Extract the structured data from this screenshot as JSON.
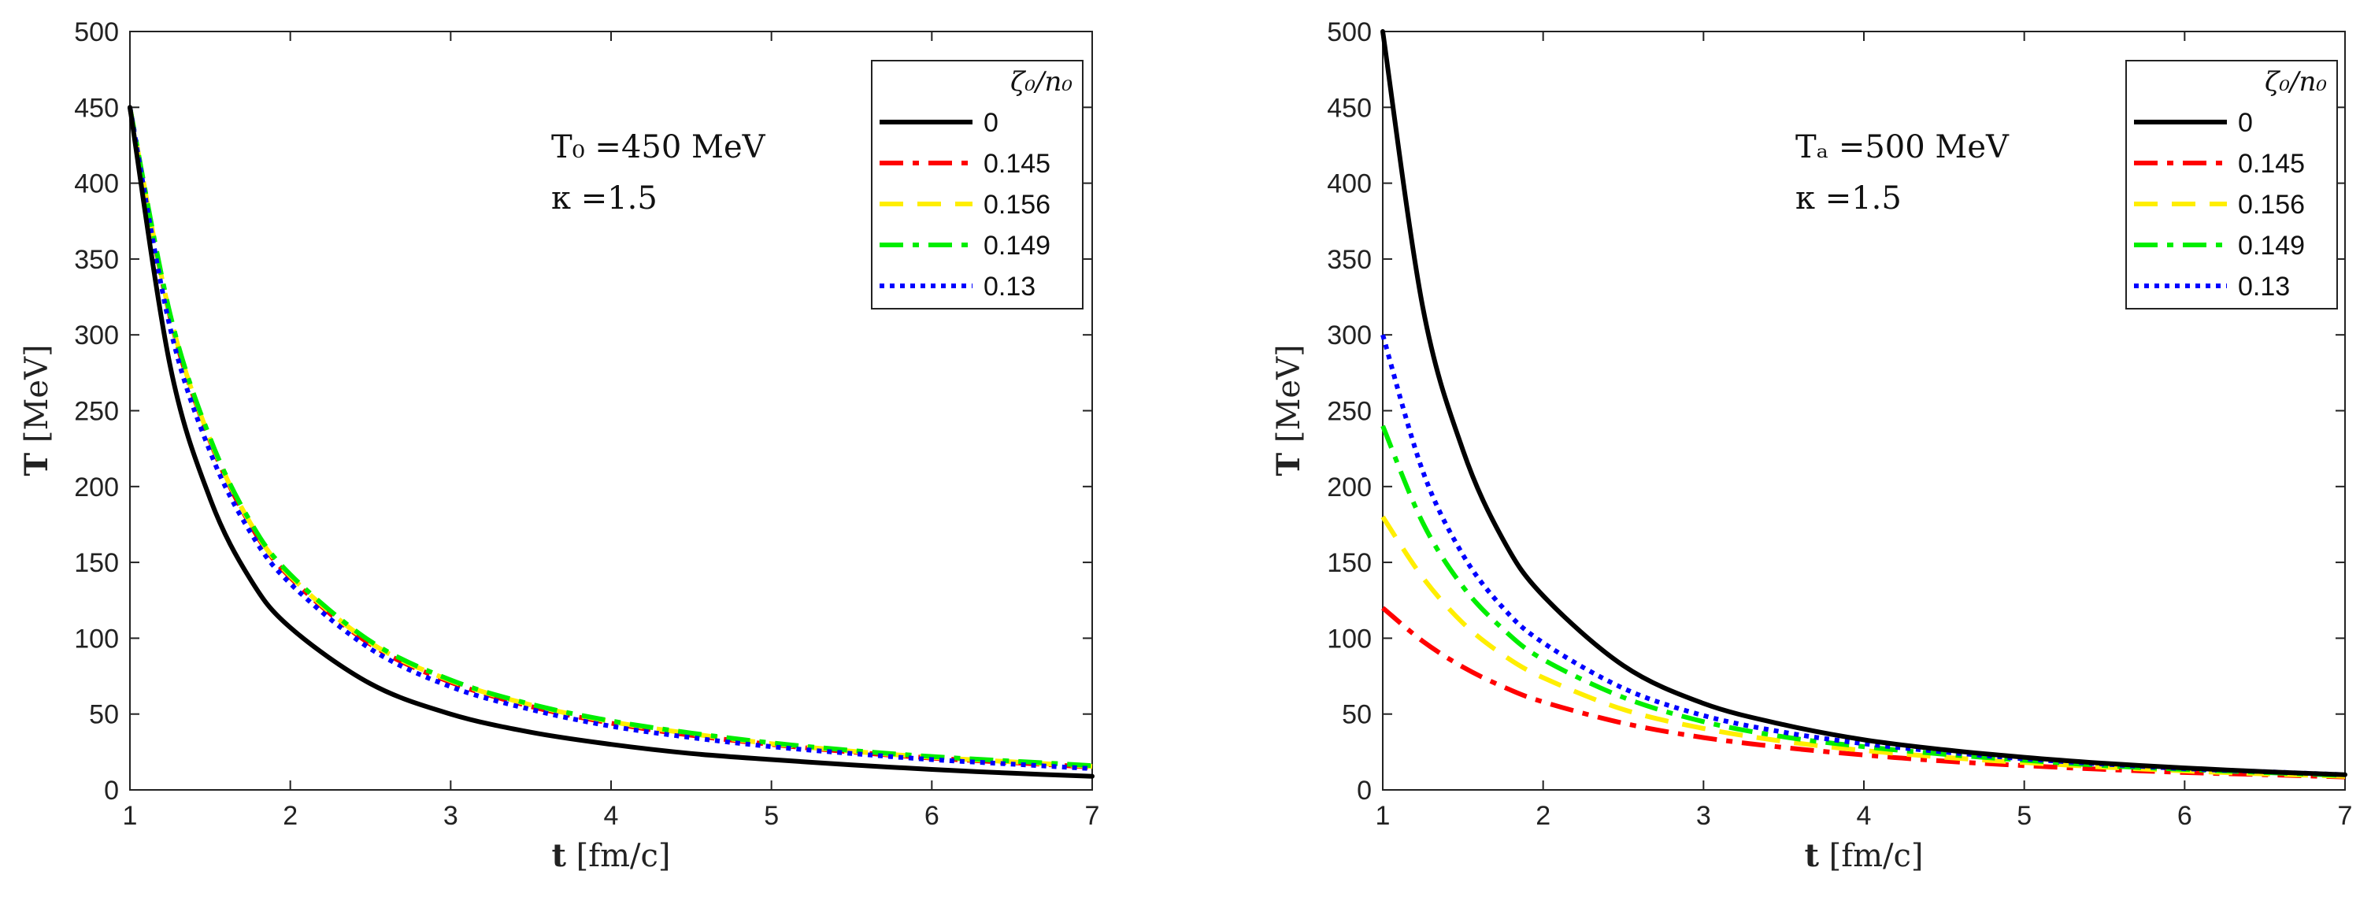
{
  "chart_data": [
    {
      "type": "line",
      "panel": "left",
      "xlabel_bold": "t",
      "xlabel_rest": " [fm/c]",
      "ylabel_bold": "T",
      "ylabel_rest": " [MeV]",
      "xlim": [
        1,
        7
      ],
      "ylim": [
        0,
        500
      ],
      "xticks": [
        1,
        2,
        3,
        4,
        5,
        6,
        7
      ],
      "yticks": [
        0,
        50,
        100,
        150,
        200,
        250,
        300,
        350,
        400,
        450,
        500
      ],
      "annotation_line1": "T₀ =450 MeV",
      "annotation_line2": "κ =1.5",
      "legend_title": "ζ₀/n₀",
      "legend_location": "top-right",
      "series": [
        {
          "name": "0",
          "color": "#000000",
          "style": "solid",
          "x": [
            1,
            1.25,
            1.5,
            1.75,
            2,
            2.5,
            3,
            3.5,
            4,
            4.5,
            5,
            5.5,
            6,
            6.5,
            7
          ],
          "y": [
            450,
            280,
            192,
            139,
            107,
            70,
            50,
            38,
            30,
            24,
            20,
            16.5,
            13.5,
            11,
            9
          ]
        },
        {
          "name": "0.145",
          "color": "#ff0000",
          "style": "dashdot",
          "x": [
            1,
            1.25,
            1.5,
            1.75,
            2,
            2.5,
            3,
            3.5,
            4,
            4.5,
            5,
            5.5,
            6,
            6.5,
            7
          ],
          "y": [
            450,
            312,
            230,
            175,
            140,
            96,
            71,
            55,
            44,
            36,
            30,
            25,
            21,
            18,
            15
          ]
        },
        {
          "name": "0.156",
          "color": "#ffee00",
          "style": "dashed",
          "x": [
            1,
            1.25,
            1.5,
            1.75,
            2,
            2.5,
            3,
            3.5,
            4,
            4.5,
            5,
            5.5,
            6,
            6.5,
            7
          ],
          "y": [
            450,
            313,
            231,
            176,
            141,
            97,
            72,
            56,
            45,
            37,
            30.5,
            25.5,
            21.5,
            18.5,
            15.5
          ]
        },
        {
          "name": "0.149",
          "color": "#00ee00",
          "style": "dashdot",
          "x": [
            1,
            1.25,
            1.5,
            1.75,
            2,
            2.5,
            3,
            3.5,
            4,
            4.5,
            5,
            5.5,
            6,
            6.5,
            7
          ],
          "y": [
            450,
            314,
            232,
            177,
            142,
            98,
            72.5,
            56.5,
            45.5,
            37.5,
            31,
            26,
            22,
            19,
            16
          ]
        },
        {
          "name": "0.13",
          "color": "#0000ff",
          "style": "dotted",
          "x": [
            1,
            1.25,
            1.5,
            1.75,
            2,
            2.5,
            3,
            3.5,
            4,
            4.5,
            5,
            5.5,
            6,
            6.5,
            7
          ],
          "y": [
            450,
            305,
            223,
            170,
            136,
            93,
            68,
            53,
            42,
            34.5,
            28.5,
            24,
            20,
            17,
            14
          ]
        }
      ]
    },
    {
      "type": "line",
      "panel": "right",
      "xlabel_bold": "t",
      "xlabel_rest": " [fm/c]",
      "ylabel_bold": "T",
      "ylabel_rest": " [MeV]",
      "xlim": [
        1,
        7
      ],
      "ylim": [
        0,
        500
      ],
      "xticks": [
        1,
        2,
        3,
        4,
        5,
        6,
        7
      ],
      "yticks": [
        0,
        50,
        100,
        150,
        200,
        250,
        300,
        350,
        400,
        450,
        500
      ],
      "annotation_line1": "Tₐ =500 MeV",
      "annotation_line2": "κ =1.5",
      "legend_title": "ζ₀/n₀",
      "legend_location": "top-right",
      "series": [
        {
          "name": "0",
          "color": "#000000",
          "style": "solid",
          "x": [
            1,
            1.25,
            1.5,
            1.75,
            2,
            2.5,
            3,
            3.5,
            4,
            4.5,
            5,
            5.5,
            6,
            6.5,
            7
          ],
          "y": [
            500,
            318,
            224,
            165,
            128,
            82,
            57,
            43,
            33,
            26.5,
            21.5,
            17.5,
            14.5,
            12,
            10
          ]
        },
        {
          "name": "0.145",
          "color": "#ff0000",
          "style": "dashdot",
          "x": [
            1,
            1.25,
            1.5,
            1.75,
            2,
            2.5,
            3,
            3.5,
            4,
            4.5,
            5,
            5.5,
            6,
            6.5,
            7
          ],
          "y": [
            120,
            98,
            81,
            68,
            58,
            44,
            34.5,
            28,
            23,
            19,
            16,
            13.5,
            11.5,
            10,
            8.5
          ]
        },
        {
          "name": "0.156",
          "color": "#ffee00",
          "style": "dashed",
          "x": [
            1,
            1.25,
            1.5,
            1.75,
            2,
            2.5,
            3,
            3.5,
            4,
            4.5,
            5,
            5.5,
            6,
            6.5,
            7
          ],
          "y": [
            180,
            140,
            110,
            89,
            74,
            53,
            40.5,
            32,
            26,
            21.5,
            18,
            15,
            12.5,
            10.5,
            9
          ]
        },
        {
          "name": "0.149",
          "color": "#00ee00",
          "style": "dashdot",
          "x": [
            1,
            1.25,
            1.5,
            1.75,
            2,
            2.5,
            3,
            3.5,
            4,
            4.5,
            5,
            5.5,
            6,
            6.5,
            7
          ],
          "y": [
            240,
            176,
            134,
            106,
            86,
            61,
            45,
            35,
            28.5,
            23.5,
            19.5,
            16,
            13.5,
            11.5,
            9.5
          ]
        },
        {
          "name": "0.13",
          "color": "#0000ff",
          "style": "dotted",
          "x": [
            1,
            1.25,
            1.5,
            1.75,
            2,
            2.5,
            3,
            3.5,
            4,
            4.5,
            5,
            5.5,
            6,
            6.5,
            7
          ],
          "y": [
            300,
            210,
            155,
            120,
            97,
            67,
            49,
            38,
            30.5,
            25,
            20.5,
            17,
            14,
            12,
            10
          ]
        }
      ]
    }
  ]
}
